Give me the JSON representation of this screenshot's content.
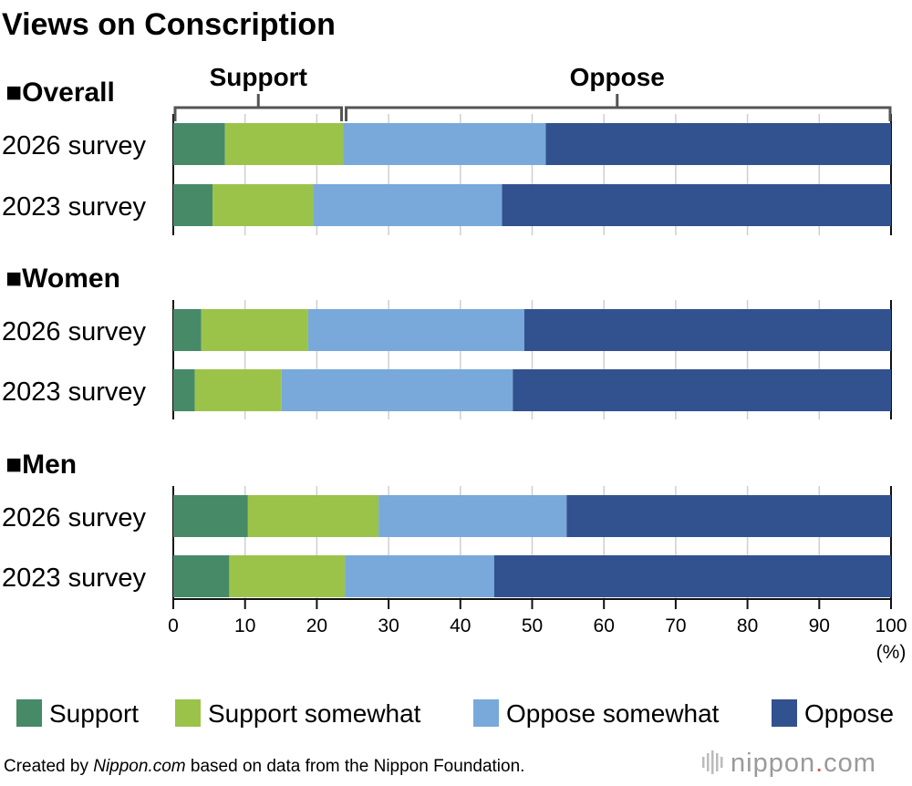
{
  "chart_data": {
    "type": "bar",
    "orientation": "horizontal",
    "stacked": true,
    "title": "Views on Conscription",
    "groups": [
      {
        "name": "■Overall",
        "rows": [
          {
            "label": "2026 survey",
            "values": [
              7.2,
              16.5,
              28.2,
              48.1
            ]
          },
          {
            "label": "2023 survey",
            "values": [
              5.5,
              14.0,
              26.3,
              54.2
            ]
          }
        ]
      },
      {
        "name": "■Women",
        "rows": [
          {
            "label": "2026 survey",
            "values": [
              3.9,
              14.9,
              30.1,
              51.1
            ]
          },
          {
            "label": "2023 survey",
            "values": [
              3.0,
              12.1,
              32.2,
              52.7
            ]
          }
        ]
      },
      {
        "name": "■Men",
        "rows": [
          {
            "label": "2026 survey",
            "values": [
              10.4,
              18.2,
              26.2,
              45.2
            ]
          },
          {
            "label": "2023 survey",
            "values": [
              7.8,
              16.1,
              20.8,
              55.3
            ]
          }
        ]
      }
    ],
    "series": [
      {
        "name": "Support",
        "color": "#468a68"
      },
      {
        "name": "Support somewhat",
        "color": "#9bc34a"
      },
      {
        "name": "Oppose somewhat",
        "color": "#78a9da"
      },
      {
        "name": "Oppose",
        "color": "#32518f"
      }
    ],
    "xlim": [
      0,
      100
    ],
    "xticks": [
      "0",
      "10",
      "20",
      "30",
      "40",
      "50",
      "60",
      "70",
      "80",
      "90",
      "100"
    ],
    "xunit": "(%)",
    "grid": true,
    "legend_position": "bottom",
    "brackets": [
      "Support",
      "Oppose"
    ]
  },
  "footer": {
    "prefix": "Created by ",
    "source_italic": "Nippon.com",
    "suffix": " based on data from the Nippon Foundation.",
    "brand_main": "nippon",
    "brand_dot": ".",
    "brand_tld": "com"
  }
}
